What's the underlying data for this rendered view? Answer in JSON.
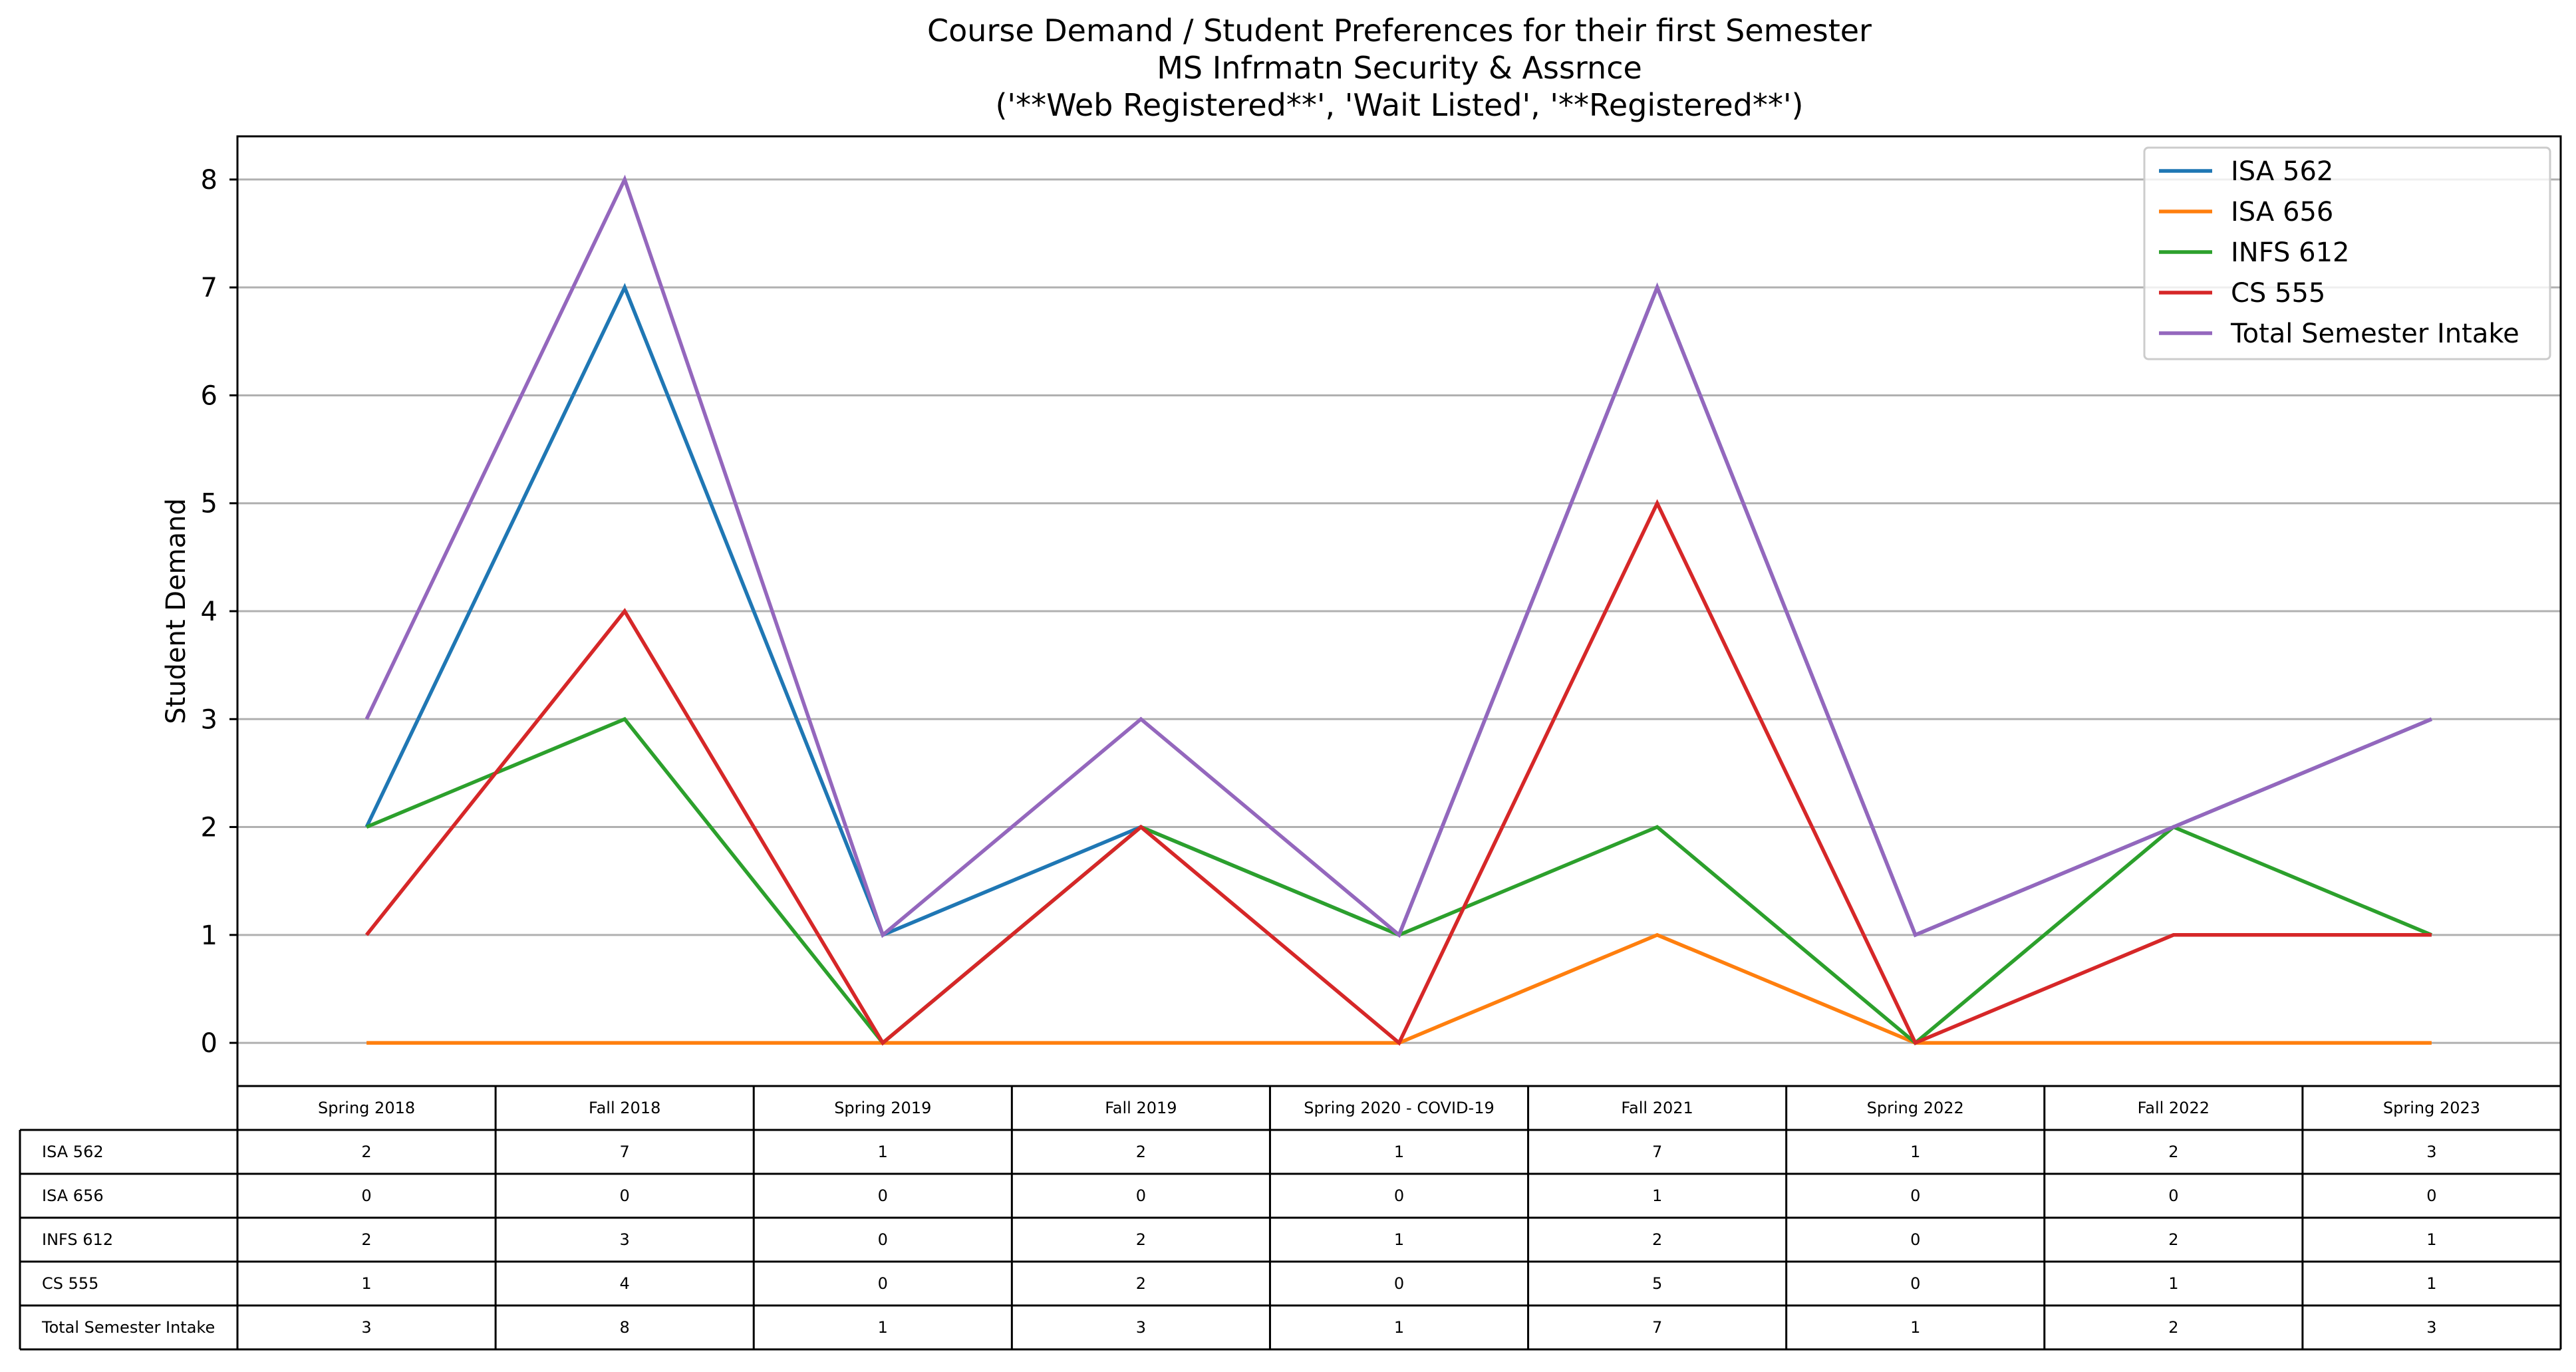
{
  "chart_data": {
    "type": "line",
    "title_lines": [
      "Course Demand / Student Preferences for their first Semester",
      "MS Infrmatn Security & Assrnce",
      "('**Web Registered**', 'Wait Listed', '**Registered**')"
    ],
    "xlabel": "",
    "ylabel": "Student Demand",
    "ylim": [
      -0.4,
      8.4
    ],
    "yticks": [
      0,
      1,
      2,
      3,
      4,
      5,
      6,
      7,
      8
    ],
    "grid": "horizontal",
    "legend_position": "top-right",
    "categories": [
      "Spring 2018",
      "Fall 2018",
      "Spring 2019",
      "Fall 2019",
      "Spring 2020 - COVID-19",
      "Fall 2021",
      "Spring 2022",
      "Fall 2022",
      "Spring 2023"
    ],
    "series": [
      {
        "name": "ISA 562",
        "color": "#1f77b4",
        "values": [
          2,
          7,
          1,
          2,
          1,
          7,
          1,
          2,
          3
        ]
      },
      {
        "name": "ISA 656",
        "color": "#ff7f0e",
        "values": [
          0,
          0,
          0,
          0,
          0,
          1,
          0,
          0,
          0
        ]
      },
      {
        "name": "INFS 612",
        "color": "#2ca02c",
        "values": [
          2,
          3,
          0,
          2,
          1,
          2,
          0,
          2,
          1
        ]
      },
      {
        "name": "CS 555",
        "color": "#d62728",
        "values": [
          1,
          4,
          0,
          2,
          0,
          5,
          0,
          1,
          1
        ]
      },
      {
        "name": "Total Semester Intake",
        "color": "#9467bd",
        "values": [
          3,
          8,
          1,
          3,
          1,
          7,
          1,
          2,
          3
        ]
      }
    ]
  }
}
